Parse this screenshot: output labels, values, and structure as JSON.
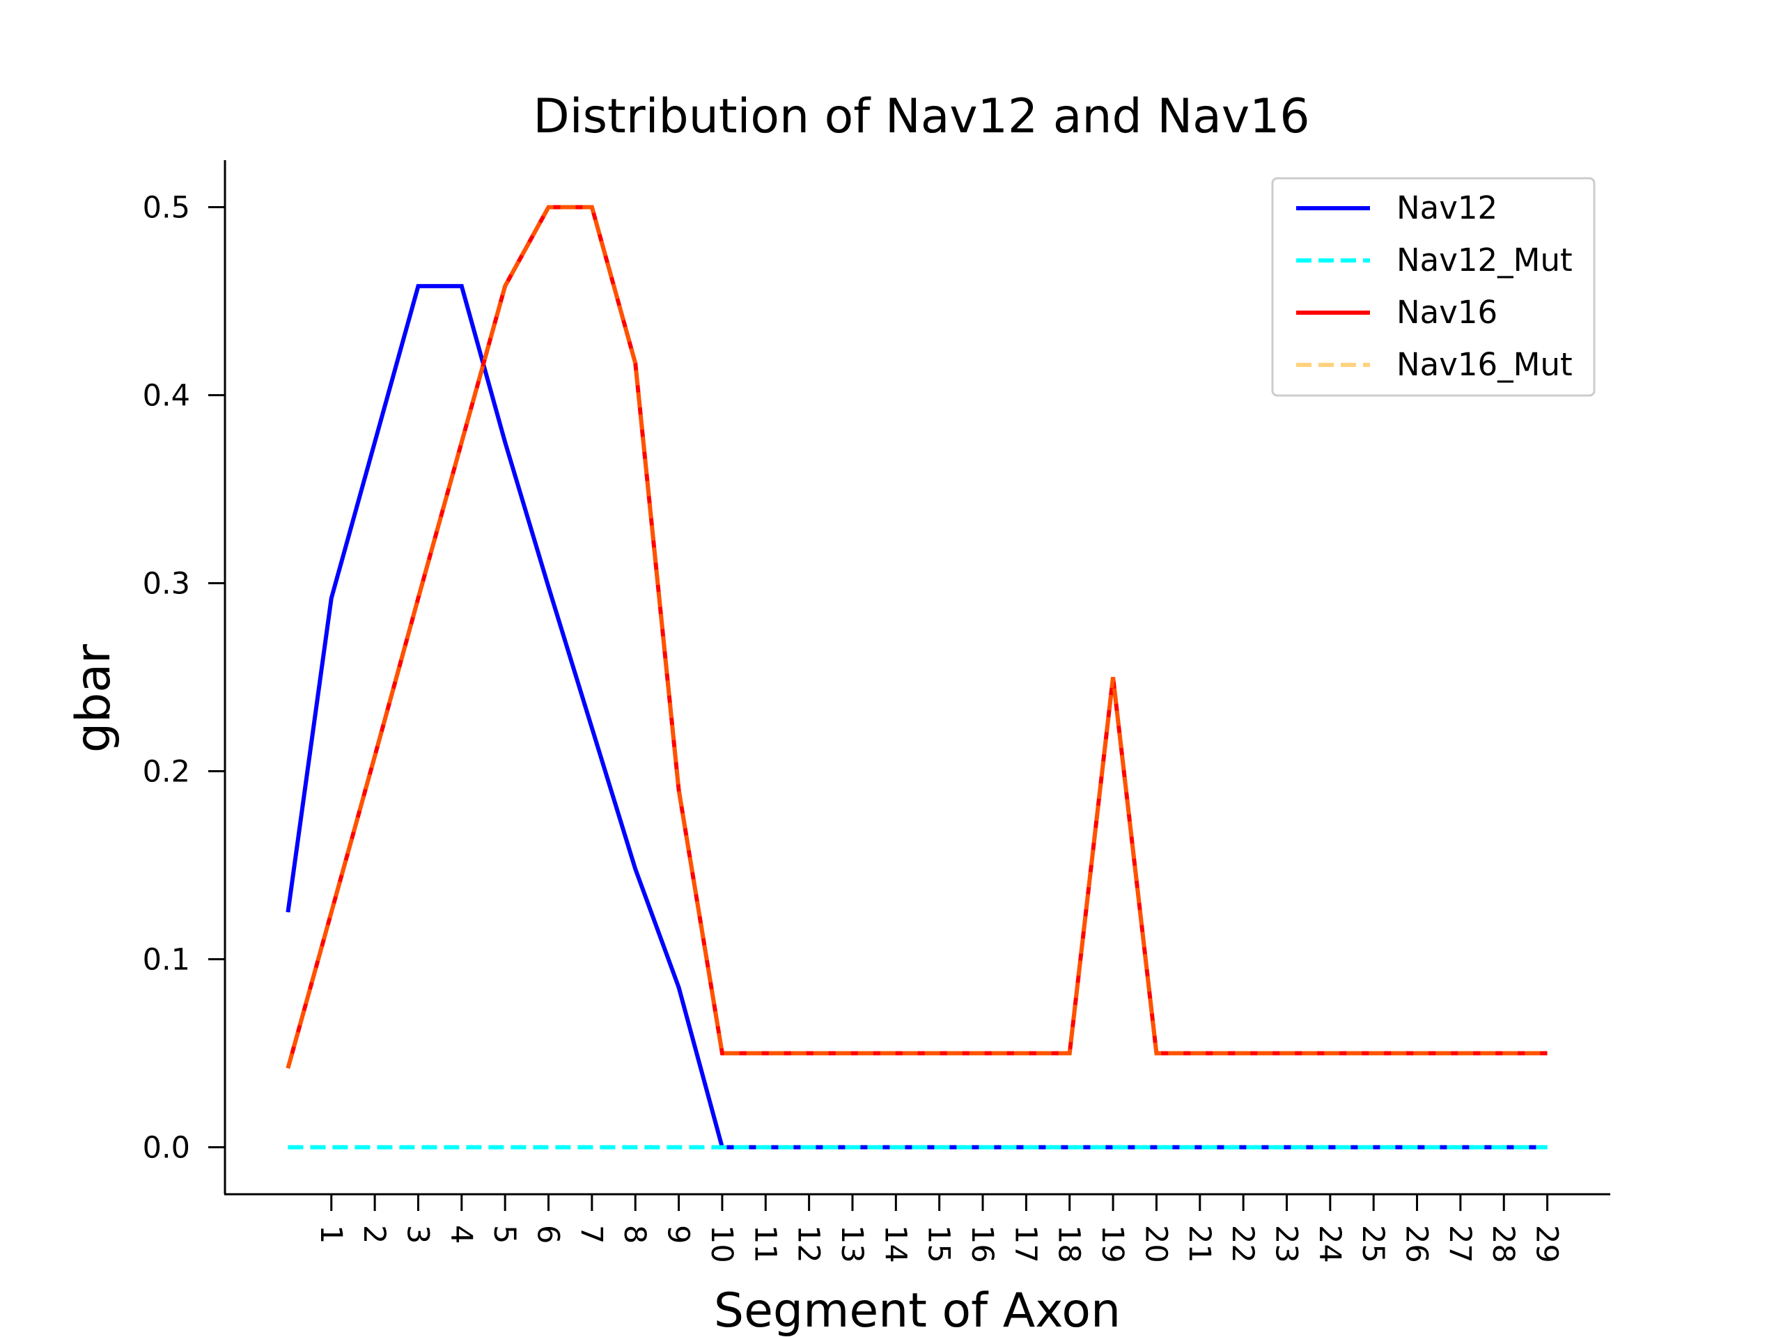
{
  "chart_data": {
    "type": "line",
    "title": "Distribution of Nav12 and Nav16",
    "xlabel": "Segment of Axon",
    "ylabel": "gbar",
    "x": [
      0,
      1,
      2,
      3,
      4,
      5,
      6,
      7,
      8,
      9,
      10,
      11,
      12,
      13,
      14,
      15,
      16,
      17,
      18,
      19,
      20,
      21,
      22,
      23,
      24,
      25,
      26,
      27,
      28,
      29
    ],
    "xticks": [
      "1",
      "2",
      "3",
      "4",
      "5",
      "6",
      "7",
      "8",
      "9",
      "10",
      "11",
      "12",
      "13",
      "14",
      "15",
      "16",
      "17",
      "18",
      "19",
      "20",
      "21",
      "22",
      "23",
      "24",
      "25",
      "26",
      "27",
      "28",
      "29"
    ],
    "yticks": [
      "0.0",
      "0.1",
      "0.2",
      "0.3",
      "0.4",
      "0.5"
    ],
    "ylim": [
      -0.025,
      0.525
    ],
    "xlim": [
      -1.45,
      30.45
    ],
    "grid": false,
    "legend_position": "top-right",
    "series": [
      {
        "name": "Nav12",
        "color": "#0000ff",
        "dash": "solid",
        "values": [
          0.125,
          0.292,
          0.375,
          0.458,
          0.458,
          0.375,
          0.298,
          0.223,
          0.148,
          0.085,
          0,
          0,
          0,
          0,
          0,
          0,
          0,
          0,
          0,
          0,
          0,
          0,
          0,
          0,
          0,
          0,
          0,
          0,
          0,
          0
        ]
      },
      {
        "name": "Nav12_Mut",
        "color": "#00ffff",
        "dash": "dashed",
        "values": [
          0,
          0,
          0,
          0,
          0,
          0,
          0,
          0,
          0,
          0,
          0,
          0,
          0,
          0,
          0,
          0,
          0,
          0,
          0,
          0,
          0,
          0,
          0,
          0,
          0,
          0,
          0,
          0,
          0,
          0
        ]
      },
      {
        "name": "Nav16",
        "color": "#ff0000",
        "dash": "solid",
        "values": [
          0.042,
          0.125,
          0.208,
          0.292,
          0.375,
          0.458,
          0.5,
          0.5,
          0.417,
          0.19,
          0.05,
          0.05,
          0.05,
          0.05,
          0.05,
          0.05,
          0.05,
          0.05,
          0.05,
          0.25,
          0.05,
          0.05,
          0.05,
          0.05,
          0.05,
          0.05,
          0.05,
          0.05,
          0.05,
          0.05
        ]
      },
      {
        "name": "Nav16_Mut",
        "color": "#ffa500",
        "dash": "dashed",
        "opacity": 0.5,
        "values": [
          0.042,
          0.125,
          0.208,
          0.292,
          0.375,
          0.458,
          0.5,
          0.5,
          0.417,
          0.19,
          0.05,
          0.05,
          0.05,
          0.05,
          0.05,
          0.05,
          0.05,
          0.05,
          0.05,
          0.25,
          0.05,
          0.05,
          0.05,
          0.05,
          0.05,
          0.05,
          0.05,
          0.05,
          0.05,
          0.05
        ]
      }
    ]
  }
}
